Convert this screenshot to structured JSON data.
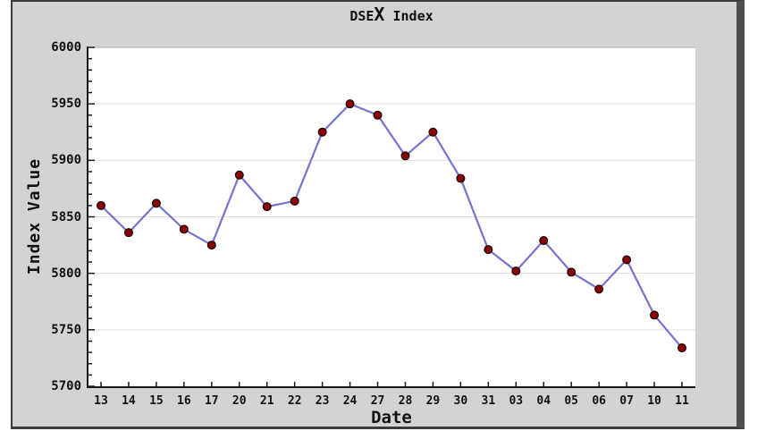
{
  "window": {
    "title_prefix": "DSE",
    "title_x": "X",
    "title_suffix": " Index"
  },
  "chart_data": {
    "type": "line",
    "title": "DSEX Index",
    "xlabel": "Date",
    "ylabel": "Index Value",
    "categories": [
      "13",
      "14",
      "15",
      "16",
      "17",
      "20",
      "21",
      "22",
      "23",
      "24",
      "27",
      "28",
      "29",
      "30",
      "31",
      "03",
      "04",
      "05",
      "06",
      "07",
      "10",
      "11"
    ],
    "values": [
      5860,
      5836,
      5862,
      5839,
      5825,
      5887,
      5859,
      5864,
      5925,
      5950,
      5940,
      5904,
      5925,
      5884,
      5821,
      5802,
      5829,
      5801,
      5786,
      5812,
      5763,
      5734
    ],
    "ylim": [
      5700,
      6000
    ],
    "ytick_step": 50,
    "ytick_minor_step": 10,
    "ytick_labels": [
      "6000",
      "5950",
      "5900",
      "5850",
      "5800",
      "5750",
      "5700"
    ],
    "grid": "horizontal",
    "legend": "none",
    "marker": "circle",
    "colors": {
      "background": "#d3d3d3",
      "plot_background": "#ffffff",
      "line": "#7474d0",
      "marker_fill": "#8b0000",
      "marker_stroke": "#150000",
      "axis": "#1a1a1a",
      "gridline": "#dedede",
      "gridline_top": "#a8a8a8",
      "frame": "#3c3c3c"
    }
  }
}
